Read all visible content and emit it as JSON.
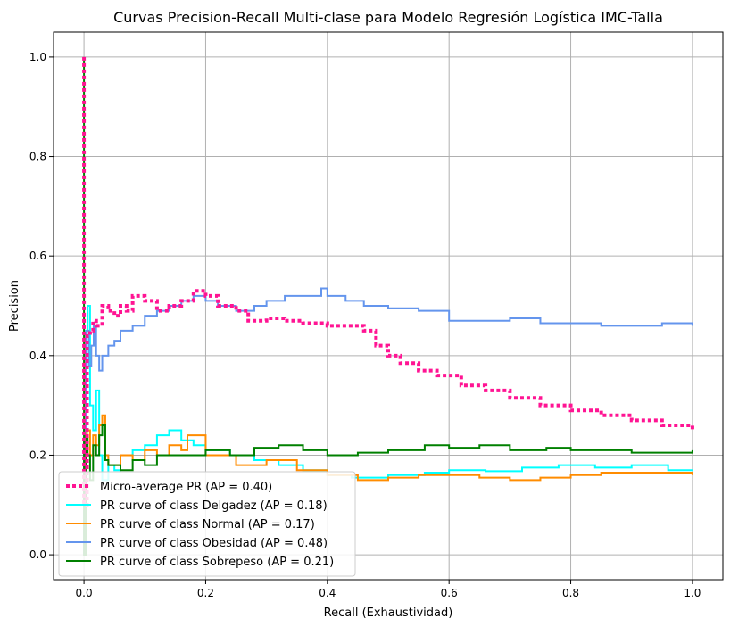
{
  "chart_data": {
    "type": "line",
    "title": "Curvas Precision-Recall Multi-clase para Modelo Regresión Logística IMC-Talla",
    "xlabel": "Recall (Exhaustividad)",
    "ylabel": "Precision",
    "xlim": [
      -0.05,
      1.05
    ],
    "ylim": [
      -0.05,
      1.05
    ],
    "xticks": [
      0.0,
      0.2,
      0.4,
      0.6,
      0.8,
      1.0
    ],
    "xtick_labels": [
      "0.0",
      "0.2",
      "0.4",
      "0.6",
      "0.8",
      "1.0"
    ],
    "yticks": [
      0.0,
      0.2,
      0.4,
      0.6,
      0.8,
      1.0
    ],
    "ytick_labels": [
      "0.0",
      "0.2",
      "0.4",
      "0.6",
      "0.8",
      "1.0"
    ],
    "grid": true,
    "legend_position": "lower-left",
    "series": [
      {
        "name": "Micro-average PR (AP = 0.40)",
        "color": "#ff1493",
        "style": "dotted",
        "x": [
          0.0,
          0.0,
          0.0,
          0.005,
          0.01,
          0.015,
          0.02,
          0.03,
          0.04,
          0.05,
          0.06,
          0.07,
          0.08,
          0.1,
          0.12,
          0.14,
          0.16,
          0.18,
          0.2,
          0.22,
          0.25,
          0.27,
          0.3,
          0.33,
          0.36,
          0.4,
          0.43,
          0.46,
          0.48,
          0.5,
          0.52,
          0.55,
          0.58,
          0.62,
          0.66,
          0.7,
          0.75,
          0.8,
          0.85,
          0.9,
          0.95,
          1.0
        ],
        "y": [
          1.0,
          0.6,
          0.1,
          0.44,
          0.45,
          0.47,
          0.46,
          0.5,
          0.49,
          0.48,
          0.5,
          0.49,
          0.52,
          0.51,
          0.49,
          0.5,
          0.51,
          0.53,
          0.52,
          0.5,
          0.49,
          0.47,
          0.475,
          0.47,
          0.465,
          0.46,
          0.46,
          0.45,
          0.42,
          0.4,
          0.385,
          0.37,
          0.36,
          0.34,
          0.33,
          0.315,
          0.3,
          0.29,
          0.28,
          0.27,
          0.26,
          0.25
        ]
      },
      {
        "name": "PR curve of class Delgadez (AP = 0.18)",
        "color": "#00ffff",
        "style": "solid",
        "x": [
          0.0,
          0.0,
          0.003,
          0.006,
          0.01,
          0.015,
          0.02,
          0.025,
          0.03,
          0.04,
          0.05,
          0.06,
          0.08,
          0.1,
          0.12,
          0.14,
          0.16,
          0.18,
          0.2,
          0.24,
          0.28,
          0.32,
          0.36,
          0.4,
          0.44,
          0.5,
          0.56,
          0.6,
          0.66,
          0.72,
          0.78,
          0.84,
          0.9,
          0.96,
          1.0
        ],
        "y": [
          0.0,
          0.2,
          0.45,
          0.5,
          0.3,
          0.25,
          0.33,
          0.2,
          0.15,
          0.18,
          0.17,
          0.2,
          0.21,
          0.22,
          0.24,
          0.25,
          0.23,
          0.22,
          0.21,
          0.2,
          0.19,
          0.18,
          0.17,
          0.16,
          0.155,
          0.16,
          0.165,
          0.17,
          0.168,
          0.175,
          0.18,
          0.175,
          0.18,
          0.17,
          0.17
        ]
      },
      {
        "name": "PR curve of class Normal (AP = 0.17)",
        "color": "#ff8c00",
        "style": "solid",
        "x": [
          0.0,
          0.0,
          0.005,
          0.01,
          0.015,
          0.02,
          0.025,
          0.03,
          0.035,
          0.04,
          0.06,
          0.08,
          0.1,
          0.12,
          0.14,
          0.16,
          0.17,
          0.2,
          0.25,
          0.3,
          0.35,
          0.4,
          0.45,
          0.5,
          0.55,
          0.6,
          0.65,
          0.7,
          0.75,
          0.8,
          0.85,
          0.9,
          0.95,
          1.0
        ],
        "y": [
          0.0,
          0.2,
          0.25,
          0.2,
          0.24,
          0.22,
          0.26,
          0.28,
          0.2,
          0.18,
          0.2,
          0.19,
          0.21,
          0.2,
          0.22,
          0.21,
          0.24,
          0.2,
          0.18,
          0.19,
          0.17,
          0.16,
          0.15,
          0.155,
          0.16,
          0.16,
          0.155,
          0.15,
          0.155,
          0.16,
          0.165,
          0.165,
          0.165,
          0.16
        ]
      },
      {
        "name": "PR curve of class Obesidad (AP = 0.48)",
        "color": "#6495ed",
        "style": "solid",
        "x": [
          0.0,
          0.0,
          0.004,
          0.008,
          0.012,
          0.016,
          0.02,
          0.025,
          0.03,
          0.04,
          0.05,
          0.06,
          0.08,
          0.1,
          0.12,
          0.14,
          0.16,
          0.18,
          0.2,
          0.22,
          0.25,
          0.28,
          0.3,
          0.33,
          0.36,
          0.39,
          0.4,
          0.43,
          0.46,
          0.5,
          0.55,
          0.6,
          0.65,
          0.7,
          0.75,
          0.8,
          0.85,
          0.9,
          0.95,
          1.0
        ],
        "y": [
          0.0,
          0.25,
          0.45,
          0.38,
          0.42,
          0.46,
          0.4,
          0.37,
          0.4,
          0.42,
          0.43,
          0.45,
          0.46,
          0.48,
          0.49,
          0.5,
          0.51,
          0.52,
          0.51,
          0.5,
          0.49,
          0.5,
          0.51,
          0.52,
          0.52,
          0.535,
          0.52,
          0.51,
          0.5,
          0.495,
          0.49,
          0.47,
          0.47,
          0.475,
          0.465,
          0.465,
          0.46,
          0.46,
          0.465,
          0.46
        ]
      },
      {
        "name": "PR curve of class Sobrepeso (AP = 0.21)",
        "color": "#008000",
        "style": "solid",
        "x": [
          0.0,
          0.0,
          0.003,
          0.006,
          0.01,
          0.015,
          0.02,
          0.025,
          0.03,
          0.035,
          0.04,
          0.06,
          0.08,
          0.1,
          0.12,
          0.15,
          0.2,
          0.24,
          0.28,
          0.32,
          0.36,
          0.4,
          0.45,
          0.5,
          0.56,
          0.6,
          0.65,
          0.7,
          0.76,
          0.8,
          0.85,
          0.9,
          0.95,
          1.0
        ],
        "y": [
          1.0,
          0.0,
          0.24,
          0.2,
          0.15,
          0.22,
          0.2,
          0.24,
          0.26,
          0.19,
          0.18,
          0.17,
          0.19,
          0.18,
          0.2,
          0.2,
          0.21,
          0.2,
          0.215,
          0.22,
          0.21,
          0.2,
          0.205,
          0.21,
          0.22,
          0.215,
          0.22,
          0.21,
          0.215,
          0.21,
          0.21,
          0.205,
          0.205,
          0.21
        ]
      }
    ]
  }
}
